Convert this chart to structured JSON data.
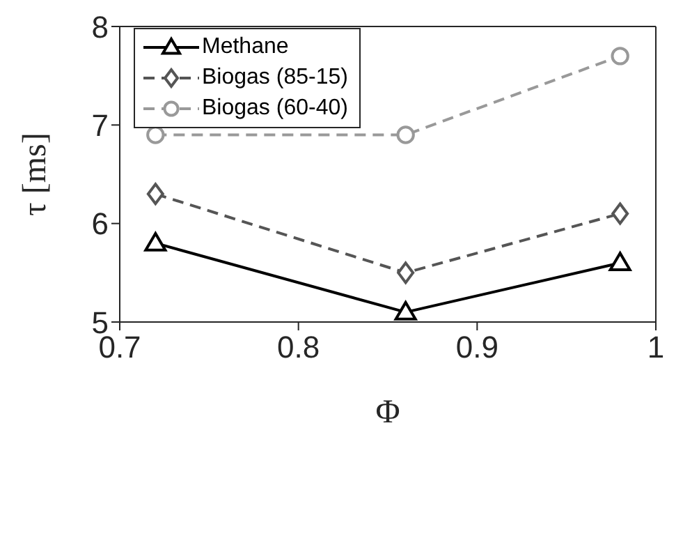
{
  "chart_data": {
    "type": "line",
    "xlabel": "Φ",
    "ylabel": "τ [ms]",
    "x": [
      0.72,
      0.86,
      0.98
    ],
    "series": [
      {
        "name": "Methane",
        "color": "#000000",
        "values": [
          5.8,
          5.1,
          5.6
        ],
        "marker": "triangle",
        "line_style": "solid"
      },
      {
        "name": "Biogas (85-15)",
        "color": "#555555",
        "values": [
          6.3,
          5.5,
          6.1
        ],
        "marker": "diamond",
        "line_style": "dashed"
      },
      {
        "name": "Biogas (60-40)",
        "color": "#999999",
        "values": [
          6.9,
          6.9,
          7.7
        ],
        "marker": "circle",
        "line_style": "dashed"
      }
    ],
    "xlim": [
      0.7,
      1.0
    ],
    "xticks": [
      0.7,
      0.8,
      0.9,
      1
    ],
    "ylim": [
      5,
      8
    ],
    "yticks": [
      5,
      6,
      7,
      8
    ],
    "legend": "top left"
  }
}
